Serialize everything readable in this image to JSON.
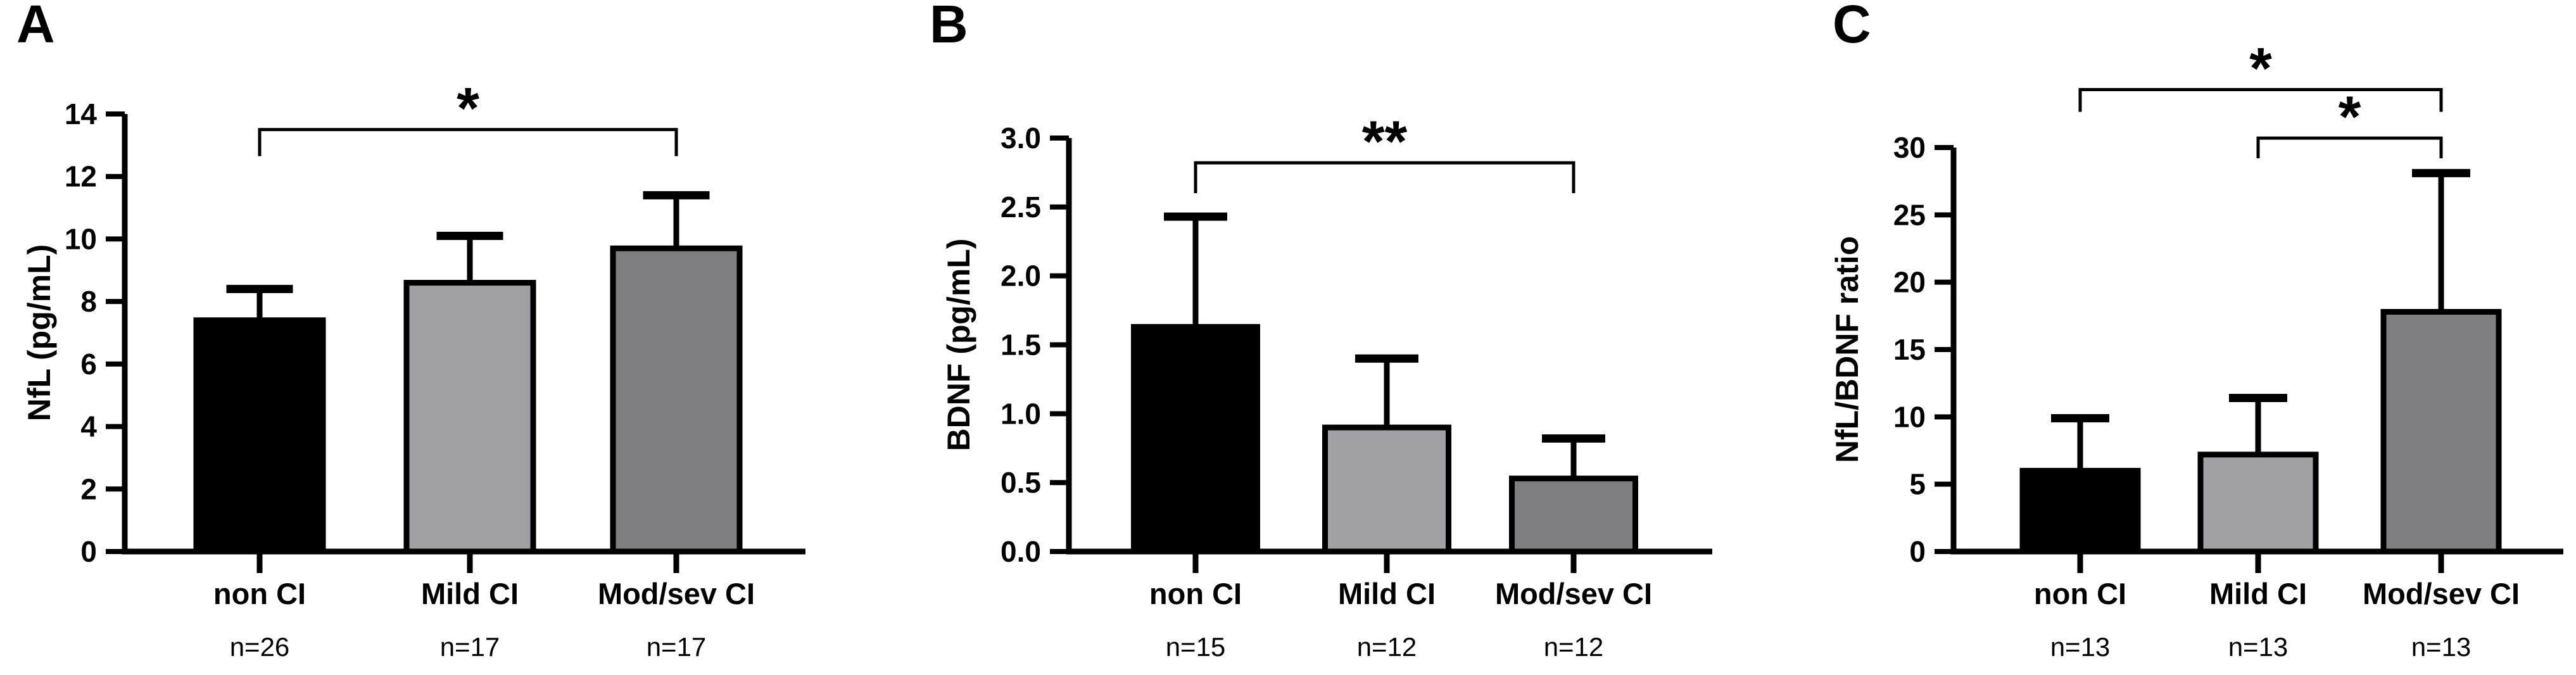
{
  "figure": {
    "background": "#ffffff",
    "text_color": "#000000"
  },
  "chart_data": [
    {
      "type": "bar",
      "panel_letter": "A",
      "ylabel": "NfL (pg/mL)",
      "ylim": [
        0,
        14
      ],
      "ytick_values": [
        0,
        2,
        4,
        6,
        8,
        10,
        12,
        14
      ],
      "ytick_labels": [
        "0",
        "2",
        "4",
        "6",
        "8",
        "10",
        "12",
        "14"
      ],
      "categories": [
        "non CI",
        "Mild CI",
        "Mod/sev CI"
      ],
      "n_labels": [
        "n=26",
        "n=17",
        "n=17"
      ],
      "values": [
        7.4,
        8.6,
        9.7
      ],
      "error_tops": [
        8.4,
        10.1,
        11.4
      ],
      "bar_colors": [
        "#000000",
        "#A1A1A5",
        "#7F7F81"
      ],
      "outline_color": "#000000",
      "grid": false,
      "significance_brackets": [
        {
          "between": [
            0,
            2
          ],
          "label": "*",
          "height": 13.5,
          "tick_drop": 0.85
        }
      ]
    },
    {
      "type": "bar",
      "panel_letter": "B",
      "ylabel": "BDNF (pg/mL)",
      "ylim": [
        0,
        3.0
      ],
      "ytick_values": [
        0,
        0.5,
        1.0,
        1.5,
        2.0,
        2.5,
        3.0
      ],
      "ytick_labels": [
        "0.0",
        "0.5",
        "1.0",
        "1.5",
        "2.0",
        "2.5",
        "3.0"
      ],
      "categories": [
        "non CI",
        "Mild CI",
        "Mod/sev CI"
      ],
      "n_labels": [
        "n=15",
        "n=12",
        "n=12"
      ],
      "values": [
        1.63,
        0.9,
        0.53
      ],
      "error_tops": [
        2.43,
        1.4,
        0.82
      ],
      "bar_colors": [
        "#000000",
        "#A1A1A5",
        "#7F7F81"
      ],
      "outline_color": "#000000",
      "grid": false,
      "significance_brackets": [
        {
          "between": [
            0,
            2
          ],
          "label": "**",
          "height": 2.82,
          "tick_drop": 0.22
        }
      ]
    },
    {
      "type": "bar",
      "panel_letter": "C",
      "ylabel": "NfL/BDNF ratio",
      "ylim": [
        0,
        30
      ],
      "ytick_values": [
        0,
        5,
        10,
        15,
        20,
        25,
        30
      ],
      "ytick_labels": [
        "0",
        "5",
        "10",
        "15",
        "20",
        "25",
        "30"
      ],
      "categories": [
        "non CI",
        "Mild CI",
        "Mod/sev CI"
      ],
      "n_labels": [
        "n=13",
        "n=13",
        "n=13"
      ],
      "values": [
        6.0,
        7.2,
        17.8
      ],
      "error_tops": [
        9.9,
        11.4,
        28.1
      ],
      "bar_colors": [
        "#000000",
        "#A1A1A5",
        "#7F7F81"
      ],
      "outline_color": "#000000",
      "grid": false,
      "significance_brackets": [
        {
          "between": [
            0,
            2
          ],
          "label": "*",
          "height": 34.3,
          "tick_drop": 1.65
        },
        {
          "between": [
            1,
            2
          ],
          "label": "*",
          "height": 30.7,
          "tick_drop": 1.5
        }
      ]
    }
  ]
}
